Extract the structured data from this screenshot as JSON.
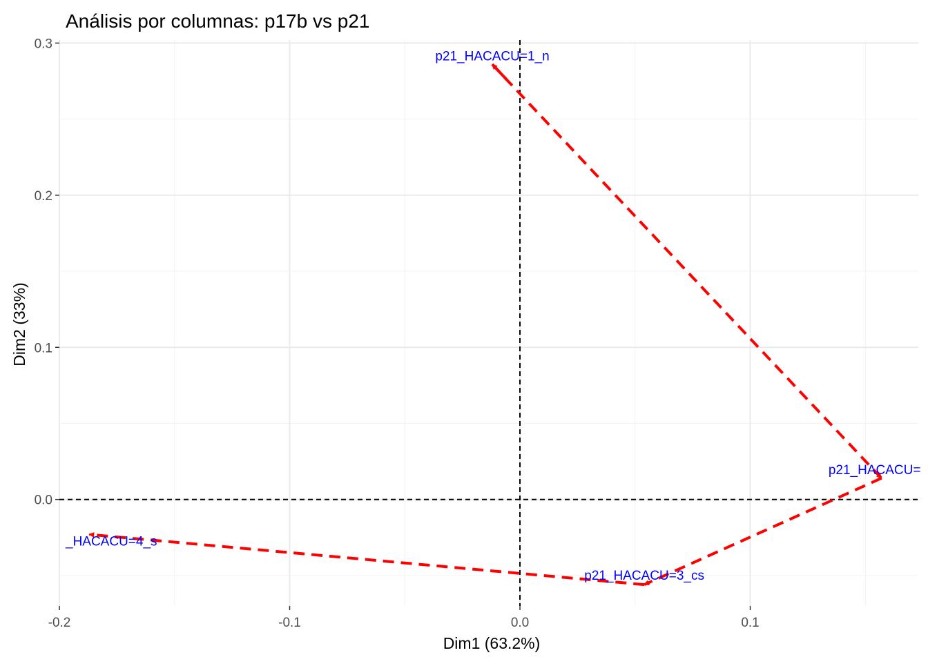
{
  "chart_data": {
    "type": "scatter",
    "title": "Análisis por columnas: p17b vs p21",
    "xlabel": "Dim1 (63.2%)",
    "ylabel": "Dim2 (33%)",
    "xlim": [
      -0.2,
      0.173
    ],
    "ylim": [
      -0.07,
      0.302
    ],
    "xticks": [
      -0.2,
      -0.1,
      0.0,
      0.1
    ],
    "xtick_labels": [
      "-0.2",
      "-0.1",
      "0.0",
      "0.1"
    ],
    "yticks": [
      0.0,
      0.1,
      0.2,
      0.3
    ],
    "ytick_labels": [
      "0.0",
      "0.1",
      "0.2",
      "0.3"
    ],
    "grid": true,
    "reference_lines": {
      "x": 0,
      "y": 0
    },
    "points": [
      {
        "label": "p21_HACACU=1_n",
        "x": -0.012,
        "y": 0.286
      },
      {
        "label": "p21_HACACU=",
        "x": 0.157,
        "y": 0.014
      },
      {
        "label": "p21_HACACU=3_cs",
        "x": 0.054,
        "y": -0.056
      },
      {
        "label": "_HACACU=4_s",
        "x": -0.187,
        "y": -0.023
      }
    ],
    "path": {
      "style": "dashed arrows",
      "color": "#ff0000",
      "order": [
        "p21_HACACU=1_n",
        "p21_HACACU=",
        "p21_HACACU=3_cs",
        "_HACACU=4_s"
      ]
    },
    "label_color": "#0000ff"
  }
}
